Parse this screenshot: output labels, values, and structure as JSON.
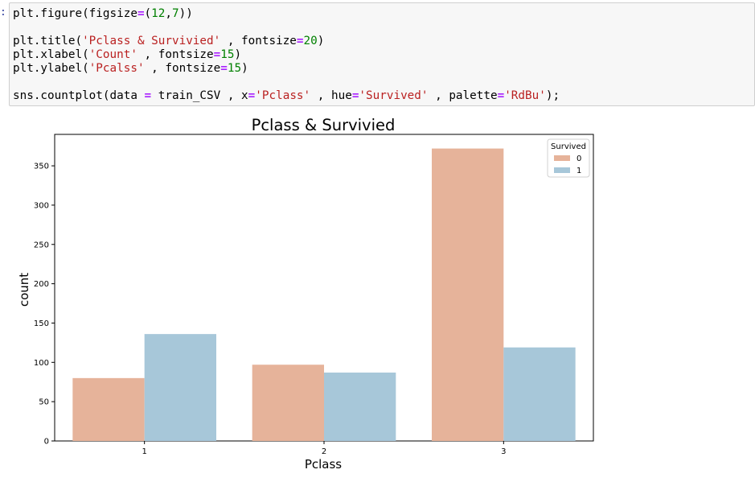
{
  "cell": {
    "prompt": ":",
    "lines": [
      [
        {
          "t": "plt.figure(figsize",
          "c": "plain"
        },
        {
          "t": "=",
          "c": "op"
        },
        {
          "t": "(",
          "c": "plain"
        },
        {
          "t": "12",
          "c": "num"
        },
        {
          "t": ",",
          "c": "plain"
        },
        {
          "t": "7",
          "c": "num"
        },
        {
          "t": "))",
          "c": "plain"
        }
      ],
      [],
      [
        {
          "t": "plt.title(",
          "c": "plain"
        },
        {
          "t": "'Pclass & Survivied'",
          "c": "str"
        },
        {
          "t": " , fontsize",
          "c": "plain"
        },
        {
          "t": "=",
          "c": "op"
        },
        {
          "t": "20",
          "c": "num"
        },
        {
          "t": ")",
          "c": "plain"
        }
      ],
      [
        {
          "t": "plt.xlabel(",
          "c": "plain"
        },
        {
          "t": "'Count'",
          "c": "str"
        },
        {
          "t": " , fontsize",
          "c": "plain"
        },
        {
          "t": "=",
          "c": "op"
        },
        {
          "t": "15",
          "c": "num"
        },
        {
          "t": ")",
          "c": "plain"
        }
      ],
      [
        {
          "t": "plt.ylabel(",
          "c": "plain"
        },
        {
          "t": "'Pcalss'",
          "c": "str"
        },
        {
          "t": " , fontsize",
          "c": "plain"
        },
        {
          "t": "=",
          "c": "op"
        },
        {
          "t": "15",
          "c": "num"
        },
        {
          "t": ")",
          "c": "plain"
        }
      ],
      [],
      [
        {
          "t": "sns.countplot(data ",
          "c": "plain"
        },
        {
          "t": "=",
          "c": "op"
        },
        {
          "t": " train_CSV , x",
          "c": "plain"
        },
        {
          "t": "=",
          "c": "op"
        },
        {
          "t": "'Pclass'",
          "c": "str"
        },
        {
          "t": " , hue",
          "c": "plain"
        },
        {
          "t": "=",
          "c": "op"
        },
        {
          "t": "'Survived'",
          "c": "str"
        },
        {
          "t": " , palette",
          "c": "plain"
        },
        {
          "t": "=",
          "c": "op"
        },
        {
          "t": "'RdBu'",
          "c": "str"
        },
        {
          "t": ");",
          "c": "plain"
        }
      ]
    ]
  },
  "chart_data": {
    "type": "bar",
    "title": "Pclass & Survivied",
    "xlabel": "Pclass",
    "ylabel": "count",
    "categories": [
      "1",
      "2",
      "3"
    ],
    "series": [
      {
        "name": "0",
        "values": [
          80,
          97,
          372
        ],
        "color": "#e6b39a"
      },
      {
        "name": "1",
        "values": [
          136,
          87,
          119
        ],
        "color": "#a7c7d9"
      }
    ],
    "ylim": [
      0,
      390
    ],
    "yticks": [
      0,
      50,
      100,
      150,
      200,
      250,
      300,
      350
    ],
    "legend": {
      "title": "Survived",
      "placement": "top-right"
    },
    "grid": false
  }
}
